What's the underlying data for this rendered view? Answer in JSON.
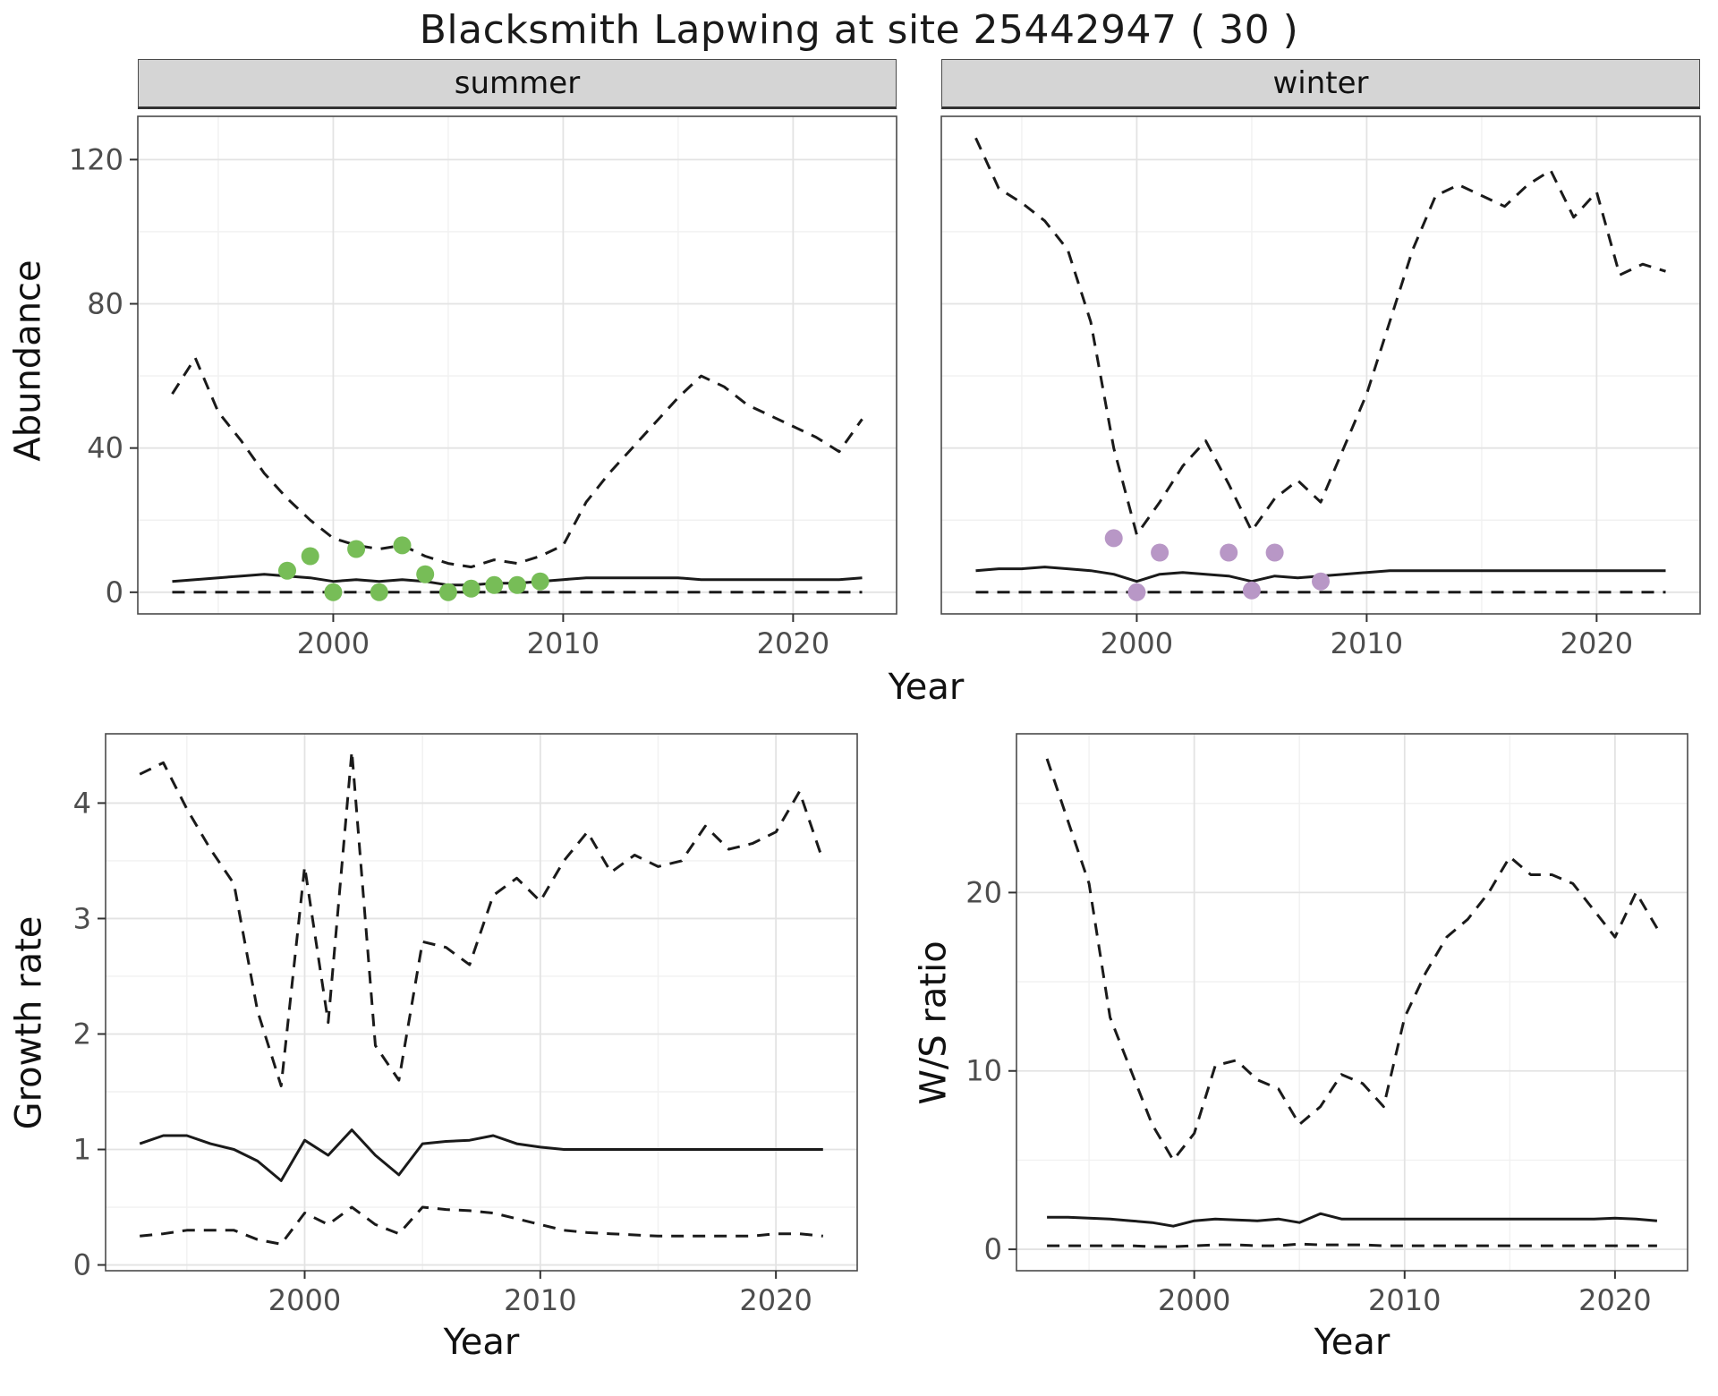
{
  "title": "Blacksmith Lapwing at site 25442947 ( 30 )",
  "style": {
    "background": "#FFFFFF",
    "grid_major": "#E3E3E3",
    "grid_minor": "#F1F1F1",
    "panel_border": "#4A4A4A",
    "strip_bg": "#D5D5D5",
    "line": "#1A1A1A",
    "tick": "#333333",
    "tick_text": "#4D4D4D",
    "summer_point_color": "#77BD57",
    "winter_point_color": "#B897C6"
  },
  "chart_data": [
    {
      "id": "abundance-summer",
      "type": "line",
      "facet": "summer",
      "xlabel": "Year",
      "ylabel": "Abundance",
      "xlim": [
        1991.5,
        2024.5
      ],
      "ylim": [
        -6,
        132
      ],
      "xticks": [
        2000,
        2010,
        2020
      ],
      "yticks": [
        0,
        40,
        80,
        120
      ],
      "xminor": [
        1995,
        2005,
        2015
      ],
      "yminor": [
        20,
        60,
        100
      ],
      "x": [
        1993,
        1994,
        1995,
        1996,
        1997,
        1998,
        1999,
        2000,
        2001,
        2002,
        2003,
        2004,
        2005,
        2006,
        2007,
        2008,
        2009,
        2010,
        2011,
        2012,
        2013,
        2014,
        2015,
        2016,
        2017,
        2018,
        2019,
        2020,
        2021,
        2022,
        2023
      ],
      "series": [
        {
          "name": "upper",
          "style": "dashed",
          "values": [
            55,
            65,
            50,
            42,
            33,
            26,
            20,
            15,
            13,
            12,
            13,
            10,
            8,
            7,
            9,
            8,
            10,
            13,
            25,
            33,
            40,
            47,
            54,
            60,
            57,
            52,
            49,
            46,
            43,
            39,
            48
          ]
        },
        {
          "name": "median",
          "style": "solid",
          "values": [
            3,
            3.5,
            4,
            4.5,
            5,
            4.5,
            4,
            3,
            3.5,
            3,
            3.5,
            3,
            2,
            2,
            2.5,
            2.5,
            3,
            3.5,
            4,
            4,
            4,
            4,
            4,
            3.5,
            3.5,
            3.5,
            3.5,
            3.5,
            3.5,
            3.5,
            4
          ]
        },
        {
          "name": "lower",
          "style": "dashed",
          "values": [
            0,
            0,
            0,
            0,
            0,
            0,
            0,
            0,
            0,
            0,
            0,
            0,
            0,
            0,
            0,
            0,
            0,
            0,
            0,
            0,
            0,
            0,
            0,
            0,
            0,
            0,
            0,
            0,
            0,
            0,
            0
          ]
        }
      ],
      "points": {
        "name": "observed-counts",
        "color": "#77BD57",
        "x": [
          1998,
          1999,
          2000,
          2001,
          2002,
          2003,
          2004,
          2005,
          2006,
          2007,
          2008,
          2009
        ],
        "y": [
          6,
          10,
          0,
          12,
          0,
          13,
          5,
          0,
          1,
          2,
          2,
          3
        ]
      }
    },
    {
      "id": "abundance-winter",
      "type": "line",
      "facet": "winter",
      "xlabel": "Year",
      "ylabel": "Abundance",
      "xlim": [
        1991.5,
        2024.5
      ],
      "ylim": [
        -6,
        132
      ],
      "xticks": [
        2000,
        2010,
        2020
      ],
      "yticks": [
        0,
        40,
        80,
        120
      ],
      "xminor": [
        1995,
        2005,
        2015
      ],
      "yminor": [
        20,
        60,
        100
      ],
      "x": [
        1993,
        1994,
        1995,
        1996,
        1997,
        1998,
        1999,
        2000,
        2001,
        2002,
        2003,
        2004,
        2005,
        2006,
        2007,
        2008,
        2009,
        2010,
        2011,
        2012,
        2013,
        2014,
        2015,
        2016,
        2017,
        2018,
        2019,
        2020,
        2021,
        2022,
        2023
      ],
      "series": [
        {
          "name": "upper",
          "style": "dashed",
          "values": [
            126,
            112,
            108,
            103,
            95,
            75,
            40,
            16,
            25,
            35,
            42,
            30,
            17,
            26,
            31,
            25,
            40,
            55,
            75,
            95,
            110,
            113,
            110,
            107,
            113,
            117,
            104,
            111,
            88,
            91,
            89
          ]
        },
        {
          "name": "median",
          "style": "solid",
          "values": [
            6,
            6.5,
            6.5,
            7,
            6.5,
            6,
            5,
            3,
            5,
            5.5,
            5,
            4.5,
            3,
            4.5,
            4,
            4.5,
            5,
            5.5,
            6,
            6,
            6,
            6,
            6,
            6,
            6,
            6,
            6,
            6,
            6,
            6,
            6
          ]
        },
        {
          "name": "lower",
          "style": "dashed",
          "values": [
            0,
            0,
            0,
            0,
            0,
            0,
            0,
            0,
            0,
            0,
            0,
            0,
            0,
            0,
            0,
            0,
            0,
            0,
            0,
            0,
            0,
            0,
            0,
            0,
            0,
            0,
            0,
            0,
            0,
            0,
            0
          ]
        }
      ],
      "points": {
        "name": "observed-counts",
        "color": "#B897C6",
        "x": [
          1999,
          2000,
          2001,
          2004,
          2005,
          2006,
          2008
        ],
        "y": [
          15,
          0,
          11,
          11,
          0.5,
          11,
          3
        ]
      }
    },
    {
      "id": "growth-rate",
      "type": "line",
      "xlabel": "Year",
      "ylabel": "Growth rate",
      "xlim": [
        1991.55,
        2023.45
      ],
      "ylim": [
        -0.05,
        4.6
      ],
      "xticks": [
        2000,
        2010,
        2020
      ],
      "yticks": [
        0,
        1,
        2,
        3,
        4
      ],
      "xminor": [
        1995,
        2005,
        2015
      ],
      "yminor": [
        0.5,
        1.5,
        2.5,
        3.5
      ],
      "x": [
        1993,
        1994,
        1995,
        1996,
        1997,
        1998,
        1999,
        2000,
        2001,
        2002,
        2003,
        2004,
        2005,
        2006,
        2007,
        2008,
        2009,
        2010,
        2011,
        2012,
        2013,
        2014,
        2015,
        2016,
        2017,
        2018,
        2019,
        2020,
        2021,
        2022
      ],
      "series": [
        {
          "name": "upper",
          "style": "dashed",
          "values": [
            4.25,
            4.35,
            3.95,
            3.6,
            3.3,
            2.2,
            1.55,
            3.45,
            2.1,
            4.45,
            1.9,
            1.6,
            2.8,
            2.75,
            2.6,
            3.2,
            3.35,
            3.15,
            3.5,
            3.75,
            3.4,
            3.55,
            3.45,
            3.5,
            3.8,
            3.6,
            3.65,
            3.75,
            4.1,
            3.5
          ]
        },
        {
          "name": "median",
          "style": "solid",
          "values": [
            1.05,
            1.12,
            1.12,
            1.05,
            1.0,
            0.9,
            0.73,
            1.08,
            0.95,
            1.17,
            0.95,
            0.78,
            1.05,
            1.07,
            1.08,
            1.12,
            1.05,
            1.02,
            1.0,
            1.0,
            1.0,
            1.0,
            1.0,
            1.0,
            1.0,
            1.0,
            1.0,
            1.0,
            1.0,
            1.0
          ]
        },
        {
          "name": "lower",
          "style": "dashed",
          "values": [
            0.25,
            0.27,
            0.3,
            0.3,
            0.3,
            0.22,
            0.18,
            0.45,
            0.35,
            0.5,
            0.35,
            0.27,
            0.5,
            0.48,
            0.47,
            0.45,
            0.4,
            0.35,
            0.3,
            0.28,
            0.27,
            0.26,
            0.25,
            0.25,
            0.25,
            0.25,
            0.25,
            0.27,
            0.27,
            0.25
          ]
        }
      ]
    },
    {
      "id": "ws-ratio",
      "type": "line",
      "xlabel": "Year",
      "ylabel": "W/S ratio",
      "xlim": [
        1991.55,
        2023.45
      ],
      "ylim": [
        -1.2,
        28.9
      ],
      "xticks": [
        2000,
        2010,
        2020
      ],
      "yticks": [
        0,
        10,
        20
      ],
      "xminor": [
        1995,
        2005,
        2015
      ],
      "yminor": [
        5,
        15,
        25
      ],
      "x": [
        1993,
        1994,
        1995,
        1996,
        1997,
        1998,
        1999,
        2000,
        2001,
        2002,
        2003,
        2004,
        2005,
        2006,
        2007,
        2008,
        2009,
        2010,
        2011,
        2012,
        2013,
        2014,
        2015,
        2016,
        2017,
        2018,
        2019,
        2020,
        2021,
        2022
      ],
      "series": [
        {
          "name": "upper",
          "style": "dashed",
          "values": [
            27.5,
            24,
            20.5,
            13,
            10,
            7,
            5,
            6.5,
            10.3,
            10.6,
            9.5,
            9,
            7,
            8,
            9.8,
            9.3,
            8,
            13,
            15.5,
            17.5,
            18.5,
            20,
            22,
            21,
            21,
            20.5,
            19,
            17.5,
            20,
            18
          ]
        },
        {
          "name": "median",
          "style": "solid",
          "values": [
            1.8,
            1.8,
            1.75,
            1.7,
            1.6,
            1.5,
            1.3,
            1.6,
            1.7,
            1.65,
            1.6,
            1.7,
            1.5,
            2.0,
            1.7,
            1.7,
            1.7,
            1.7,
            1.7,
            1.7,
            1.7,
            1.7,
            1.7,
            1.7,
            1.7,
            1.7,
            1.7,
            1.75,
            1.7,
            1.6
          ]
        },
        {
          "name": "lower",
          "style": "dashed",
          "values": [
            0.2,
            0.2,
            0.2,
            0.2,
            0.2,
            0.15,
            0.15,
            0.2,
            0.25,
            0.25,
            0.2,
            0.2,
            0.3,
            0.25,
            0.25,
            0.25,
            0.2,
            0.2,
            0.2,
            0.2,
            0.2,
            0.2,
            0.2,
            0.2,
            0.2,
            0.2,
            0.2,
            0.2,
            0.2,
            0.2
          ]
        }
      ]
    }
  ]
}
